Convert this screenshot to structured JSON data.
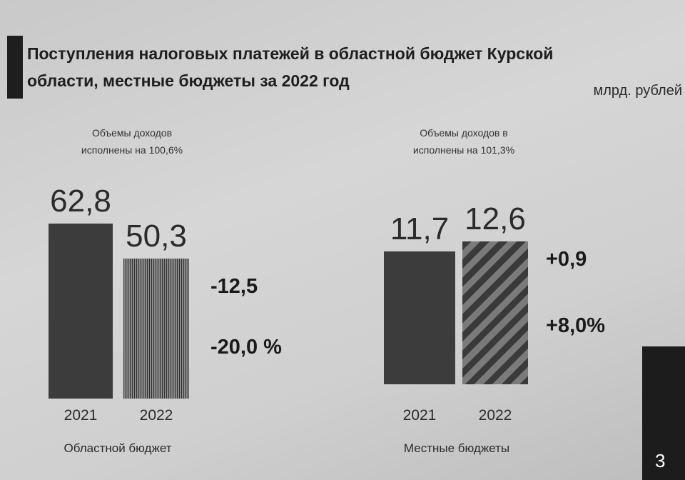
{
  "title": [
    "Поступления налоговых платежей в областной бюджет Курской",
    "области, местные бюджеты за 2022 год"
  ],
  "unit": "млрд. рублей",
  "page_number": "3",
  "chart_data": [
    {
      "type": "bar",
      "subtitle": [
        "Объемы доходов",
        "исполнены на 100,6%"
      ],
      "categories": [
        "2021",
        "2022"
      ],
      "values": [
        62.8,
        50.3
      ],
      "value_labels": [
        "62,8",
        "50,3"
      ],
      "xlabel": "Областной бюджет",
      "annotations": [
        "-12,5",
        "-20,0 %"
      ]
    },
    {
      "type": "bar",
      "subtitle": [
        "Объемы доходов в",
        "исполнены на 101,3%"
      ],
      "categories": [
        "2021",
        "2022"
      ],
      "values": [
        11.7,
        12.6
      ],
      "value_labels": [
        "11,7",
        "12,6"
      ],
      "xlabel": "Местные бюджеты",
      "annotations": [
        "+0,9",
        "+8,0%"
      ]
    }
  ]
}
